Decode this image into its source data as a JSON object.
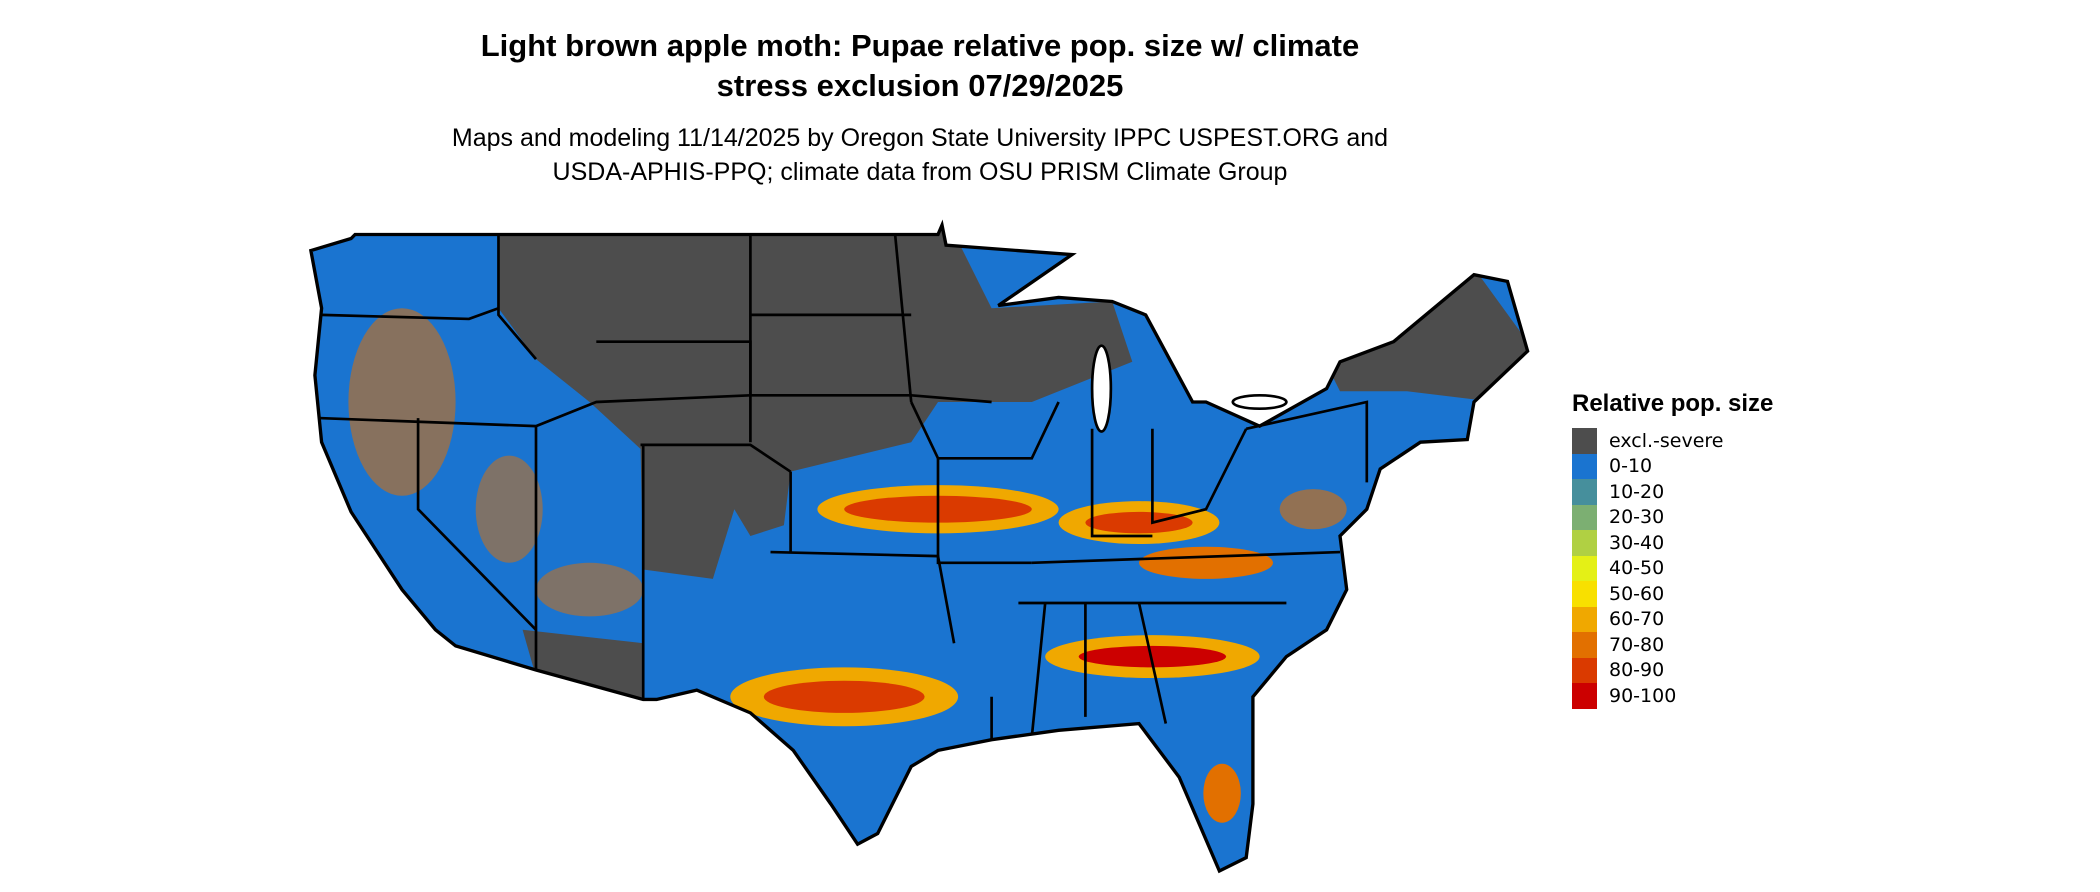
{
  "title": {
    "line1": "Light brown apple moth: Pupae relative pop. size w/ climate",
    "line2": "stress exclusion 07/29/2025"
  },
  "subtitle": {
    "line1": "Maps and modeling 11/14/2025 by Oregon State University IPPC USPEST.ORG and",
    "line2": "USDA-APHIS-PPQ; climate data from OSU PRISM Climate Group"
  },
  "legend": {
    "title": "Relative pop. size",
    "items": [
      {
        "label": "excl.-severe",
        "color": "#4d4d4d"
      },
      {
        "label": "0-10",
        "color": "#1a74d0"
      },
      {
        "label": "10-20",
        "color": "#468f9c"
      },
      {
        "label": "20-30",
        "color": "#7caf72"
      },
      {
        "label": "30-40",
        "color": "#b0d043"
      },
      {
        "label": "40-50",
        "color": "#e4f016"
      },
      {
        "label": "50-60",
        "color": "#f8e000"
      },
      {
        "label": "60-70",
        "color": "#f0a800"
      },
      {
        "label": "70-80",
        "color": "#e27000"
      },
      {
        "label": "80-90",
        "color": "#da3a00"
      },
      {
        "label": "90-100",
        "color": "#cc0000"
      }
    ]
  }
}
